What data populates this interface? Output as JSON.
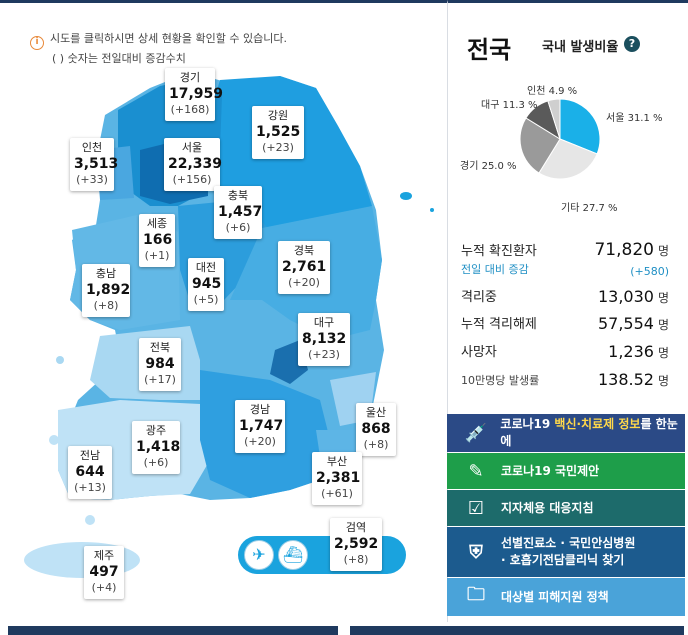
{
  "notice": {
    "line1": "시도를 클릭하시면 상세 현황을 확인할 수 있습니다.",
    "line2": "( ) 숫자는 전일대비 증감수치"
  },
  "regions": [
    {
      "name": "경기",
      "count": "17,959",
      "diff": "(+168)"
    },
    {
      "name": "강원",
      "count": "1,525",
      "diff": "(+23)"
    },
    {
      "name": "인천",
      "count": "3,513",
      "diff": "(+33)"
    },
    {
      "name": "서울",
      "count": "22,339",
      "diff": "(+156)"
    },
    {
      "name": "충북",
      "count": "1,457",
      "diff": "(+6)"
    },
    {
      "name": "세종",
      "count": "166",
      "diff": "(+1)"
    },
    {
      "name": "대전",
      "count": "945",
      "diff": "(+5)"
    },
    {
      "name": "경북",
      "count": "2,761",
      "diff": "(+20)"
    },
    {
      "name": "충남",
      "count": "1,892",
      "diff": "(+8)"
    },
    {
      "name": "대구",
      "count": "8,132",
      "diff": "(+23)"
    },
    {
      "name": "전북",
      "count": "984",
      "diff": "(+17)"
    },
    {
      "name": "경남",
      "count": "1,747",
      "diff": "(+20)"
    },
    {
      "name": "울산",
      "count": "868",
      "diff": "(+8)"
    },
    {
      "name": "광주",
      "count": "1,418",
      "diff": "(+6)"
    },
    {
      "name": "전남",
      "count": "644",
      "diff": "(+13)"
    },
    {
      "name": "부산",
      "count": "2,381",
      "diff": "(+61)"
    },
    {
      "name": "검역",
      "count": "2,592",
      "diff": "(+8)"
    },
    {
      "name": "제주",
      "count": "497",
      "diff": "(+4)"
    }
  ],
  "airport_icons": [
    "airplane-icon",
    "ship-icon"
  ],
  "summary": {
    "title": "전국",
    "ratio_title": "국내 발생비율",
    "help": "?",
    "pie": [
      {
        "label": "서울 31.1 %",
        "value": 31.1,
        "color": "#1ab0e8"
      },
      {
        "label": "기타 27.7 %",
        "value": 27.7,
        "color": "#e6e6e6"
      },
      {
        "label": "경기 25.0 %",
        "value": 25.0,
        "color": "#9a9a9a"
      },
      {
        "label": "대구 11.3 %",
        "value": 11.3,
        "color": "#5a5a5a"
      },
      {
        "label": "인천 4.9 %",
        "value": 4.9,
        "color": "#cfcfcf"
      }
    ],
    "stats": {
      "confirmed_label": "누적 확진환자",
      "confirmed_value": "71,820",
      "unit": "명",
      "daily_label": "전일 대비 증감",
      "daily_value": "(+580)",
      "isolated_label": "격리중",
      "isolated_value": "13,030",
      "released_label": "누적 격리해제",
      "released_value": "57,554",
      "deaths_label": "사망자",
      "deaths_value": "1,236",
      "rate_label": "10만명당 발생률",
      "rate_value": "138.52"
    }
  },
  "nav": {
    "vaccine_pre": "코로나19 ",
    "vaccine_hl": "백신·치료제 정보",
    "vaccine_post": "를 한눈에",
    "proposal": "코로나19 국민제안",
    "guideline": "지자체용 대응지침",
    "hospital_line1": "선별진료소 · 국민안심병원",
    "hospital_line2": "· 호흡기전담클리닉 찾기",
    "support": "대상별 피해지원 정책"
  },
  "colors": {
    "navy": "#1f3a5f",
    "vaccine_bg": "#2b4a86",
    "proposal_bg": "#1e9e4a",
    "guideline_bg": "#1d6b6b",
    "hospital_bg": "#1c5b8e",
    "support_bg": "#4aa3d9"
  }
}
